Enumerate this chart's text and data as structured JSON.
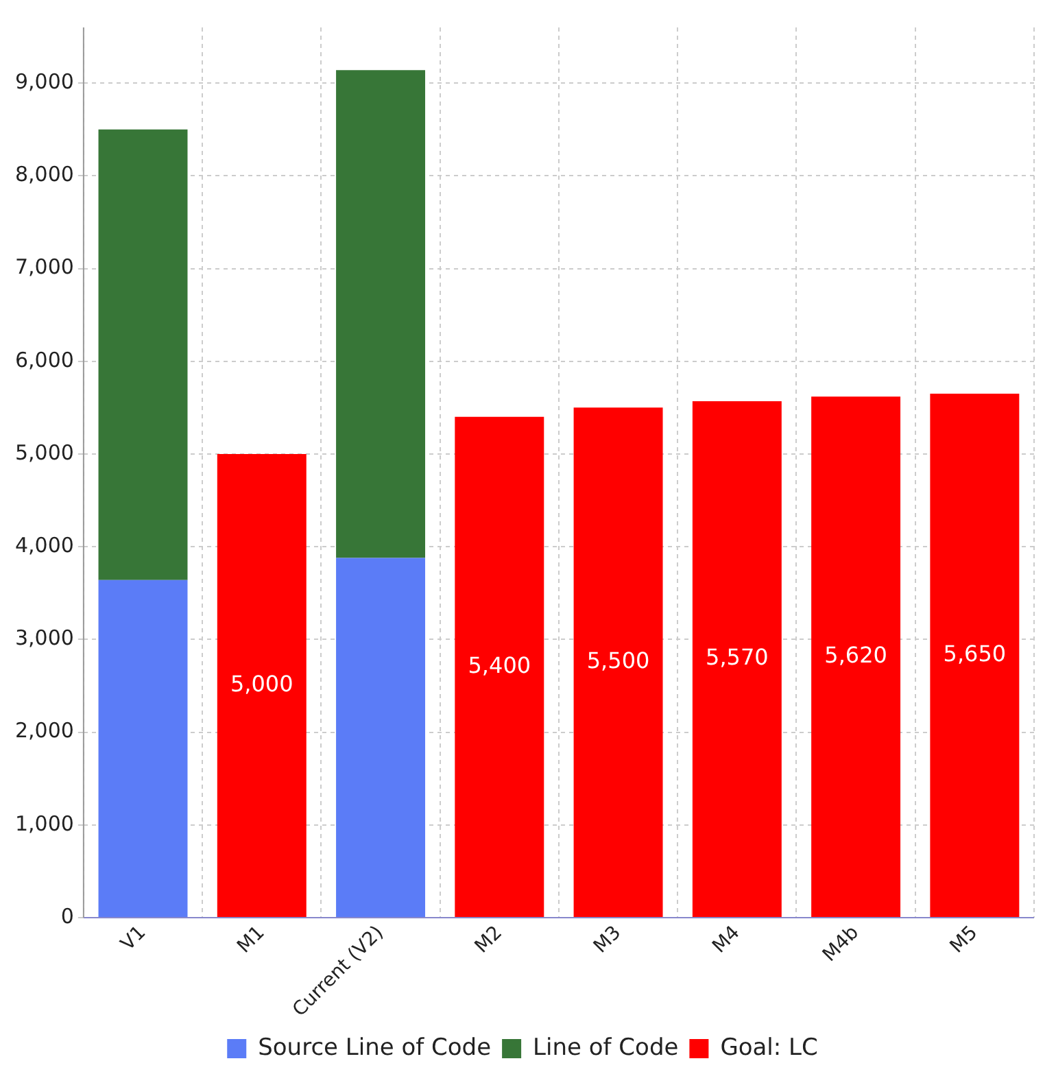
{
  "chart_data": {
    "type": "bar",
    "stacked": true,
    "categories": [
      "V1",
      "M1",
      "Current (V2)",
      "M2",
      "M3",
      "M4",
      "M4b",
      "M5"
    ],
    "series": [
      {
        "name": "Source Line of Code",
        "color": "#5b7cf7",
        "values": [
          3640,
          null,
          3880,
          null,
          null,
          null,
          null,
          null
        ]
      },
      {
        "name": "Line of Code",
        "color": "#377637",
        "values": [
          4860,
          null,
          5260,
          null,
          null,
          null,
          null,
          null
        ]
      },
      {
        "name": "Goal: LC",
        "color": "#ff0000",
        "values": [
          null,
          5000,
          null,
          5400,
          5500,
          5570,
          5620,
          5650
        ],
        "value_labels": [
          null,
          "5,000",
          null,
          "5,400",
          "5,500",
          "5,570",
          "5,620",
          "5,650"
        ]
      }
    ],
    "ylim": [
      0,
      9600
    ],
    "yticks": [
      {
        "value": 0,
        "label": "0"
      },
      {
        "value": 1000,
        "label": "1,000"
      },
      {
        "value": 2000,
        "label": "2,000"
      },
      {
        "value": 3000,
        "label": "3,000"
      },
      {
        "value": 4000,
        "label": "4,000"
      },
      {
        "value": 5000,
        "label": "5,000"
      },
      {
        "value": 6000,
        "label": "6,000"
      },
      {
        "value": 7000,
        "label": "7,000"
      },
      {
        "value": 8000,
        "label": "8,000"
      },
      {
        "value": 9000,
        "label": "9,000"
      }
    ],
    "grid": true,
    "legend": "bottom"
  }
}
